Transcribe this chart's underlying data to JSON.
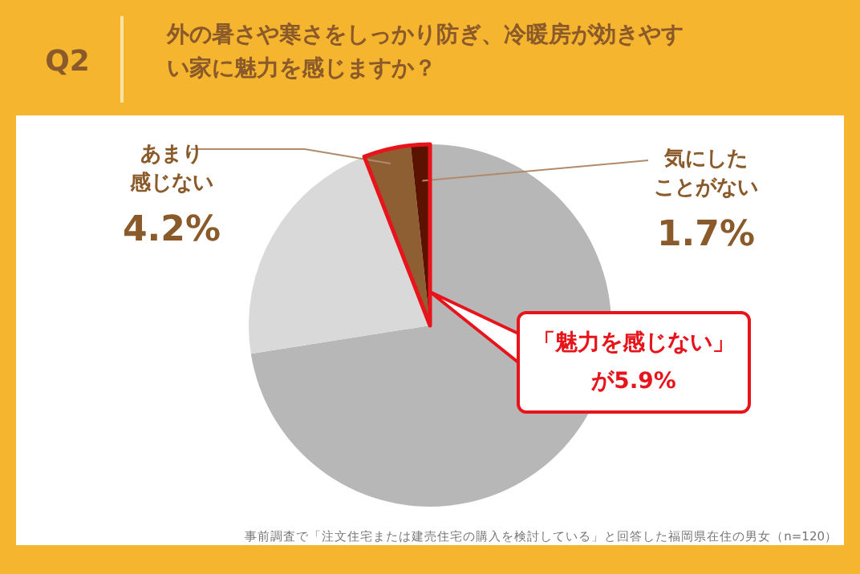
{
  "chart_data": {
    "type": "pie",
    "title": "外の暑さや寒さをしっかり防ぎ、冷暖房が効きやすい家に魅力を感じますか？",
    "subtitle": "Q2",
    "categories": [
      null,
      null,
      "あまり感じない",
      "気にしたことがない"
    ],
    "values": [
      72.5,
      21.6,
      4.2,
      1.7
    ],
    "colors": [
      "#b7b7b7",
      "#d9d9d9",
      "#8f5f34",
      "#5c1200"
    ],
    "value_labels": [
      null,
      null,
      "4.2%",
      "1.7%"
    ],
    "annotations": [
      "「魅力を感じない」が5.9%",
      "事前調査で「注文住宅または建売住宅の購入を検討している」と回答した福岡県在住の男女（n=120）"
    ],
    "legend": false
  }
}
